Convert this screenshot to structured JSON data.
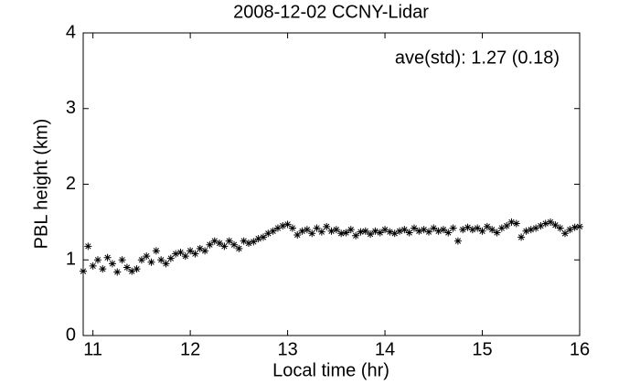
{
  "chart_data": {
    "type": "scatter",
    "title": "2008-12-02 CCNY-Lidar",
    "xlabel": "Local time (hr)",
    "ylabel": "PBL height (km)",
    "annotation": "ave(std): 1.27 (0.18)",
    "color": "#000000",
    "xlim": [
      10.9,
      16
    ],
    "ylim": [
      0,
      4
    ],
    "xticks": [
      11,
      12,
      13,
      14,
      15,
      16
    ],
    "yticks": [
      0,
      1,
      2,
      3,
      4
    ],
    "x": [
      10.9,
      10.95,
      11.0,
      11.05,
      11.1,
      11.15,
      11.2,
      11.25,
      11.3,
      11.35,
      11.4,
      11.45,
      11.5,
      11.55,
      11.6,
      11.65,
      11.7,
      11.75,
      11.8,
      11.85,
      11.9,
      11.95,
      12.0,
      12.05,
      12.1,
      12.15,
      12.2,
      12.25,
      12.3,
      12.35,
      12.4,
      12.45,
      12.5,
      12.55,
      12.6,
      12.65,
      12.7,
      12.75,
      12.8,
      12.85,
      12.9,
      12.95,
      13.0,
      13.05,
      13.1,
      13.15,
      13.2,
      13.25,
      13.3,
      13.35,
      13.4,
      13.45,
      13.5,
      13.55,
      13.6,
      13.65,
      13.7,
      13.75,
      13.8,
      13.85,
      13.9,
      13.95,
      14.0,
      14.05,
      14.1,
      14.15,
      14.2,
      14.25,
      14.3,
      14.35,
      14.4,
      14.45,
      14.5,
      14.55,
      14.6,
      14.65,
      14.7,
      14.75,
      14.8,
      14.85,
      14.9,
      14.95,
      15.0,
      15.05,
      15.1,
      15.15,
      15.2,
      15.25,
      15.3,
      15.35,
      15.4,
      15.45,
      15.5,
      15.55,
      15.6,
      15.65,
      15.7,
      15.75,
      15.8,
      15.85,
      15.9,
      15.95,
      16.0
    ],
    "values": [
      0.85,
      1.18,
      0.92,
      1.0,
      0.88,
      1.03,
      0.95,
      0.84,
      1.0,
      0.9,
      0.85,
      0.88,
      1.0,
      1.05,
      0.97,
      1.12,
      1.0,
      0.95,
      1.02,
      1.08,
      1.1,
      1.05,
      1.12,
      1.08,
      1.15,
      1.12,
      1.2,
      1.25,
      1.22,
      1.18,
      1.25,
      1.2,
      1.15,
      1.25,
      1.22,
      1.24,
      1.28,
      1.3,
      1.35,
      1.38,
      1.42,
      1.45,
      1.47,
      1.42,
      1.33,
      1.38,
      1.4,
      1.35,
      1.42,
      1.37,
      1.44,
      1.38,
      1.4,
      1.35,
      1.36,
      1.4,
      1.32,
      1.37,
      1.38,
      1.34,
      1.38,
      1.36,
      1.4,
      1.37,
      1.35,
      1.38,
      1.4,
      1.36,
      1.42,
      1.38,
      1.4,
      1.37,
      1.42,
      1.38,
      1.4,
      1.36,
      1.42,
      1.25,
      1.4,
      1.43,
      1.4,
      1.42,
      1.38,
      1.44,
      1.4,
      1.36,
      1.42,
      1.45,
      1.5,
      1.48,
      1.3,
      1.38,
      1.4,
      1.42,
      1.45,
      1.48,
      1.5,
      1.46,
      1.42,
      1.35,
      1.4,
      1.43,
      1.44
    ]
  }
}
